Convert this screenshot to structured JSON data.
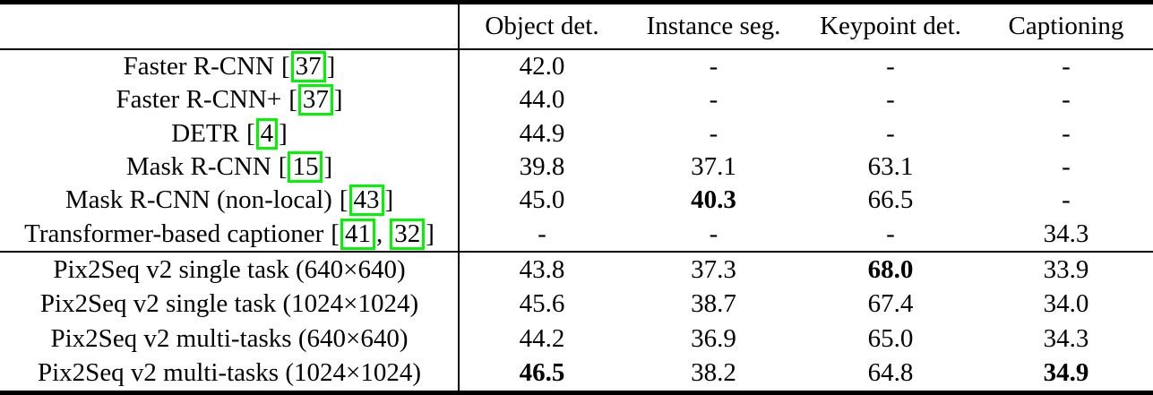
{
  "table": {
    "header": {
      "columns": [
        "Object det.",
        "Instance seg.",
        "Keypoint det.",
        "Captioning"
      ]
    },
    "symbols": {
      "open_bracket": "[",
      "close_bracket": "]",
      "cite_separator": ",",
      "dash": "-"
    },
    "colors": {
      "citation_border": "#00f500",
      "text": "#000000",
      "background": "#ffffff"
    },
    "rows": [
      {
        "method": "Faster R-CNN",
        "citations": [
          "37"
        ],
        "values": [
          "42.0",
          "-",
          "-",
          "-"
        ],
        "bold_value_indexes": []
      },
      {
        "method": "Faster R-CNN+",
        "citations": [
          "37"
        ],
        "values": [
          "44.0",
          "-",
          "-",
          "-"
        ],
        "bold_value_indexes": []
      },
      {
        "method": "DETR",
        "citations": [
          "4"
        ],
        "values": [
          "44.9",
          "-",
          "-",
          "-"
        ],
        "bold_value_indexes": []
      },
      {
        "method": "Mask R-CNN",
        "citations": [
          "15"
        ],
        "values": [
          "39.8",
          "37.1",
          "63.1",
          "-"
        ],
        "bold_value_indexes": []
      },
      {
        "method": "Mask R-CNN (non-local)",
        "citations": [
          "43"
        ],
        "values": [
          "45.0",
          "40.3",
          "66.5",
          "-"
        ],
        "bold_value_indexes": [
          1
        ]
      },
      {
        "method": "Transformer-based captioner",
        "citations": [
          "41",
          "32"
        ],
        "values": [
          "-",
          "-",
          "-",
          "34.3"
        ],
        "bold_value_indexes": []
      },
      {
        "method": "Pix2Seq v2 single task (640×640)",
        "citations": [],
        "values": [
          "43.8",
          "37.3",
          "68.0",
          "33.9"
        ],
        "bold_value_indexes": [
          2
        ]
      },
      {
        "method": "Pix2Seq v2 single task (1024×1024)",
        "citations": [],
        "values": [
          "45.6",
          "38.7",
          "67.4",
          "34.0"
        ],
        "bold_value_indexes": []
      },
      {
        "method": "Pix2Seq v2 multi-tasks (640×640)",
        "citations": [],
        "values": [
          "44.2",
          "36.9",
          "65.0",
          "34.3"
        ],
        "bold_value_indexes": []
      },
      {
        "method": "Pix2Seq v2 multi-tasks (1024×1024)",
        "citations": [],
        "values": [
          "46.5",
          "38.2",
          "64.8",
          "34.9"
        ],
        "bold_value_indexes": [
          0,
          3
        ]
      }
    ]
  }
}
